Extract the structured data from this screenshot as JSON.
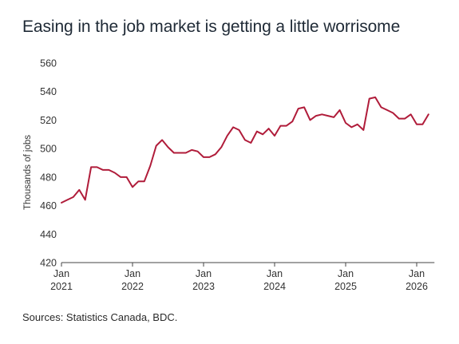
{
  "title": "Easing in the job market is getting a little worrisome",
  "source": "Sources: Statistics Canada, BDC.",
  "colors": {
    "line": "#b01c3a",
    "axis": "#444444"
  },
  "chart_data": {
    "type": "line",
    "ylabel": "Thousands of jobs",
    "xlabel": "",
    "ylim": [
      420,
      560
    ],
    "yticks": [
      420,
      440,
      460,
      480,
      500,
      520,
      540,
      560
    ],
    "xlim": [
      "2021-01",
      "2026-04"
    ],
    "xticks": [
      {
        "month": "Jan",
        "year": "2021",
        "date": "2021-01"
      },
      {
        "month": "Jan",
        "year": "2022",
        "date": "2022-01"
      },
      {
        "month": "Jan",
        "year": "2023",
        "date": "2023-01"
      },
      {
        "month": "Jan",
        "year": "2024",
        "date": "2024-01"
      },
      {
        "month": "Jan",
        "year": "2025",
        "date": "2025-01"
      },
      {
        "month": "Jan",
        "year": "2026",
        "date": "2026-01"
      }
    ],
    "grid": false,
    "series": [
      {
        "x": [
          "2021-01",
          "2021-02",
          "2021-03",
          "2021-04",
          "2021-05",
          "2021-06",
          "2021-07",
          "2021-08",
          "2021-09",
          "2021-10",
          "2021-11",
          "2021-12",
          "2022-01",
          "2022-02",
          "2022-03",
          "2022-04",
          "2022-05",
          "2022-06",
          "2022-07",
          "2022-08",
          "2022-09",
          "2022-10",
          "2022-11",
          "2022-12",
          "2023-01",
          "2023-02",
          "2023-03",
          "2023-04",
          "2023-05",
          "2023-06",
          "2023-07",
          "2023-08",
          "2023-09",
          "2023-10",
          "2023-11",
          "2023-12",
          "2024-01",
          "2024-02",
          "2024-03",
          "2024-04",
          "2024-05",
          "2024-06",
          "2024-07",
          "2024-08",
          "2024-09",
          "2024-10",
          "2024-11",
          "2024-12",
          "2025-01",
          "2025-02",
          "2025-03",
          "2025-04",
          "2025-05",
          "2025-06",
          "2025-07",
          "2025-08",
          "2025-09",
          "2025-10",
          "2025-11",
          "2025-12",
          "2026-01",
          "2026-02",
          "2026-03"
        ],
        "values": [
          462,
          464,
          466,
          471,
          464,
          487,
          487,
          485,
          485,
          483,
          480,
          480,
          473,
          477,
          477,
          488,
          502,
          506,
          501,
          497,
          497,
          497,
          499,
          498,
          494,
          494,
          496,
          501,
          509,
          515,
          513,
          506,
          504,
          512,
          510,
          514,
          509,
          516,
          516,
          519,
          528,
          529,
          520,
          523,
          524,
          523,
          522,
          527,
          518,
          515,
          517,
          513,
          535,
          536,
          529,
          527,
          525,
          521,
          521,
          524,
          517,
          517,
          524
        ]
      }
    ]
  }
}
